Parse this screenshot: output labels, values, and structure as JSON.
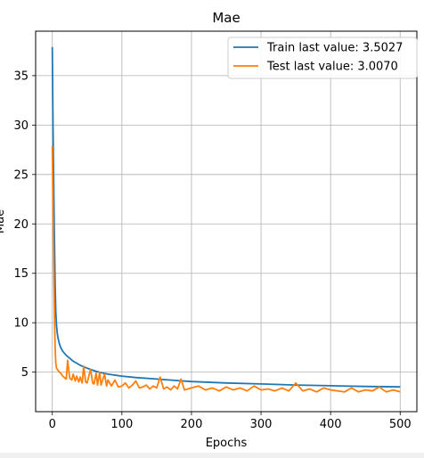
{
  "chart_data": {
    "type": "line",
    "title": "Mae",
    "xlabel": "Epochs",
    "ylabel": "Mae",
    "xlim": [
      -24,
      524
    ],
    "ylim": [
      1.0,
      39.5
    ],
    "xticks": [
      0,
      100,
      200,
      300,
      400,
      500
    ],
    "yticks": [
      5,
      10,
      15,
      20,
      25,
      30,
      35
    ],
    "grid": true,
    "legend_position": "top-right",
    "series": [
      {
        "name": "Train last value: 3.5027",
        "color": "#1f77b4",
        "x": [
          0,
          1,
          2,
          3,
          4,
          5,
          6,
          7,
          8,
          10,
          12,
          15,
          20,
          25,
          30,
          40,
          50,
          60,
          70,
          80,
          100,
          120,
          150,
          180,
          200,
          250,
          300,
          350,
          400,
          450,
          500
        ],
        "y": [
          37.9,
          30.0,
          24.0,
          18.5,
          14.0,
          11.2,
          9.8,
          9.0,
          8.5,
          7.9,
          7.5,
          7.1,
          6.7,
          6.4,
          6.1,
          5.7,
          5.4,
          5.15,
          4.95,
          4.8,
          4.6,
          4.45,
          4.3,
          4.15,
          4.05,
          3.9,
          3.8,
          3.7,
          3.62,
          3.55,
          3.5027
        ]
      },
      {
        "name": "Test last value: 3.0070",
        "color": "#ff7f0e",
        "x": [
          0,
          1,
          2,
          3,
          4,
          5,
          6,
          7,
          8,
          10,
          12,
          15,
          18,
          20,
          22,
          25,
          28,
          30,
          33,
          35,
          38,
          40,
          43,
          45,
          48,
          50,
          55,
          58,
          60,
          63,
          65,
          68,
          70,
          75,
          78,
          80,
          85,
          90,
          95,
          100,
          105,
          110,
          115,
          120,
          125,
          130,
          135,
          140,
          145,
          150,
          155,
          160,
          165,
          170,
          175,
          180,
          185,
          190,
          200,
          210,
          220,
          230,
          240,
          250,
          260,
          270,
          280,
          290,
          300,
          310,
          320,
          330,
          340,
          350,
          360,
          370,
          380,
          390,
          400,
          410,
          420,
          430,
          440,
          450,
          460,
          470,
          480,
          490,
          500
        ],
        "y": [
          27.9,
          22.0,
          16.0,
          11.0,
          7.5,
          6.0,
          5.4,
          5.3,
          5.2,
          5.0,
          4.9,
          4.6,
          4.4,
          4.3,
          6.2,
          4.4,
          4.2,
          4.8,
          4.1,
          4.6,
          4.0,
          4.5,
          3.9,
          5.6,
          4.0,
          3.9,
          5.3,
          3.9,
          3.8,
          4.9,
          3.7,
          5.0,
          3.7,
          4.8,
          3.6,
          4.2,
          3.6,
          4.2,
          3.5,
          3.6,
          3.9,
          3.4,
          3.7,
          4.1,
          3.4,
          3.5,
          3.7,
          3.3,
          3.6,
          3.4,
          4.5,
          3.3,
          3.5,
          3.2,
          3.6,
          3.3,
          4.3,
          3.2,
          3.4,
          3.6,
          3.2,
          3.4,
          3.1,
          3.5,
          3.2,
          3.4,
          3.1,
          3.6,
          3.2,
          3.3,
          3.1,
          3.4,
          3.1,
          3.9,
          3.1,
          3.3,
          3.0,
          3.4,
          3.2,
          3.1,
          3.0,
          3.4,
          3.0,
          3.2,
          3.1,
          3.5,
          3.0,
          3.2,
          3.007
        ]
      }
    ]
  }
}
